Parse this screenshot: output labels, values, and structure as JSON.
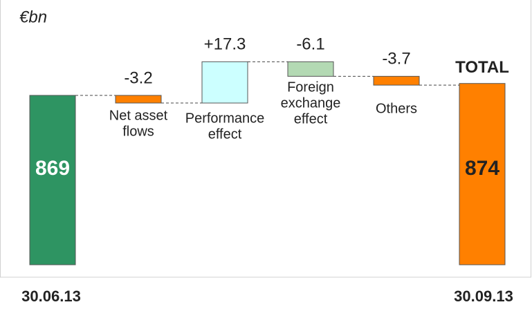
{
  "chart_data": {
    "type": "waterfall",
    "unit_label": "€bn",
    "ylim": [
      798,
      900
    ],
    "start": {
      "label": "30.06.13",
      "value": 869,
      "color": "#2e9462"
    },
    "steps": {
      "categories": [
        [
          "Net asset",
          "flows"
        ],
        [
          "Performance",
          "effect"
        ],
        [
          "Foreign",
          "exchange",
          "effect"
        ],
        [
          "Others"
        ]
      ],
      "values": [
        -3.2,
        17.3,
        -6.1,
        -3.7
      ],
      "value_labels": [
        "-3.2",
        "+17.3",
        "-6.1",
        "-3.7"
      ],
      "colors": [
        "#ff8000",
        "#ccffff",
        "#b3d9b3",
        "#ff8000"
      ]
    },
    "total": {
      "name": "TOTAL",
      "label": "30.09.13",
      "value": 874,
      "color": "#ff8000"
    }
  }
}
